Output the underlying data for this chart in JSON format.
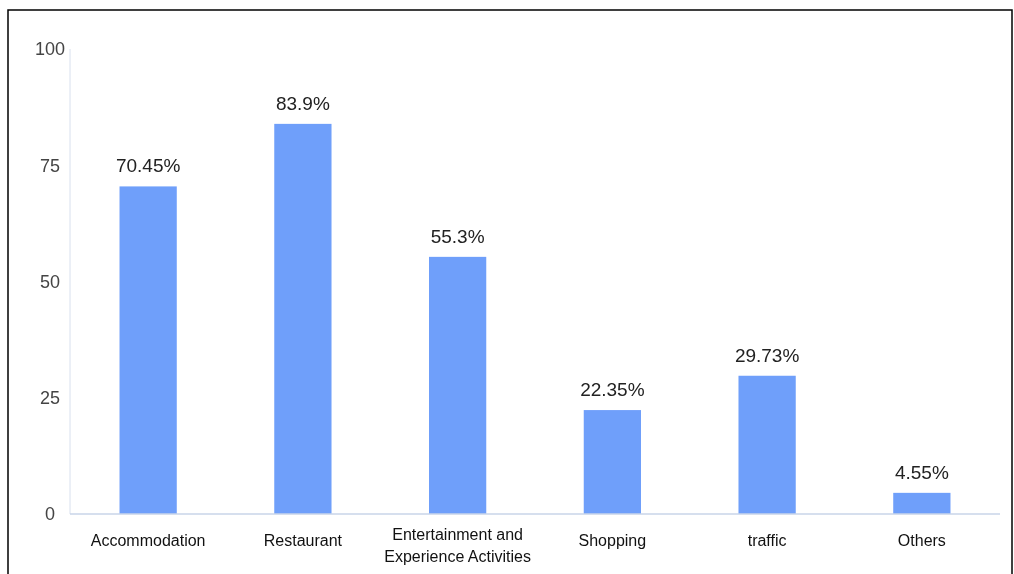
{
  "chart_data": {
    "type": "bar",
    "categories": [
      "Accommodation",
      "Restaurant",
      "Entertainment and Experience Activities",
      "Shopping",
      "traffic",
      "Others"
    ],
    "values": [
      70.45,
      83.9,
      55.3,
      22.35,
      29.73,
      4.55
    ],
    "value_labels": [
      "70.45%",
      "83.9%",
      "55.3%",
      "22.35%",
      "29.73%",
      "4.55%"
    ],
    "color": "#6f9ffa",
    "ylim": [
      0,
      100
    ],
    "yticks": [
      0,
      25,
      50,
      75,
      100
    ],
    "grid": false
  }
}
